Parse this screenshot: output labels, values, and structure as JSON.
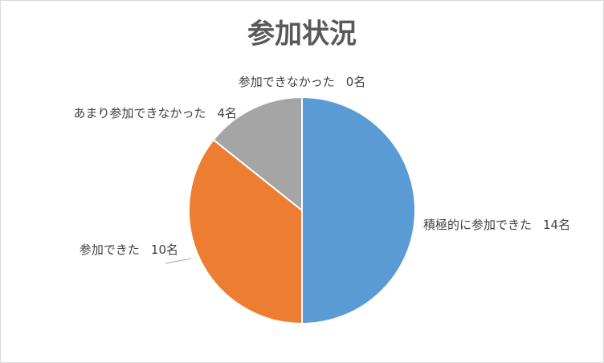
{
  "chart_data": {
    "type": "pie",
    "title": "参加状況",
    "categories": [
      "積極的に参加できた",
      "参加できた",
      "あまり参加できなかった",
      "参加できなかった"
    ],
    "values": [
      14,
      10,
      4,
      0
    ],
    "value_labels": [
      "14名",
      "10名",
      "4名",
      "0名"
    ],
    "colors": [
      "#5b9bd5",
      "#ed7d31",
      "#a5a5a5",
      "#ffc000"
    ]
  }
}
